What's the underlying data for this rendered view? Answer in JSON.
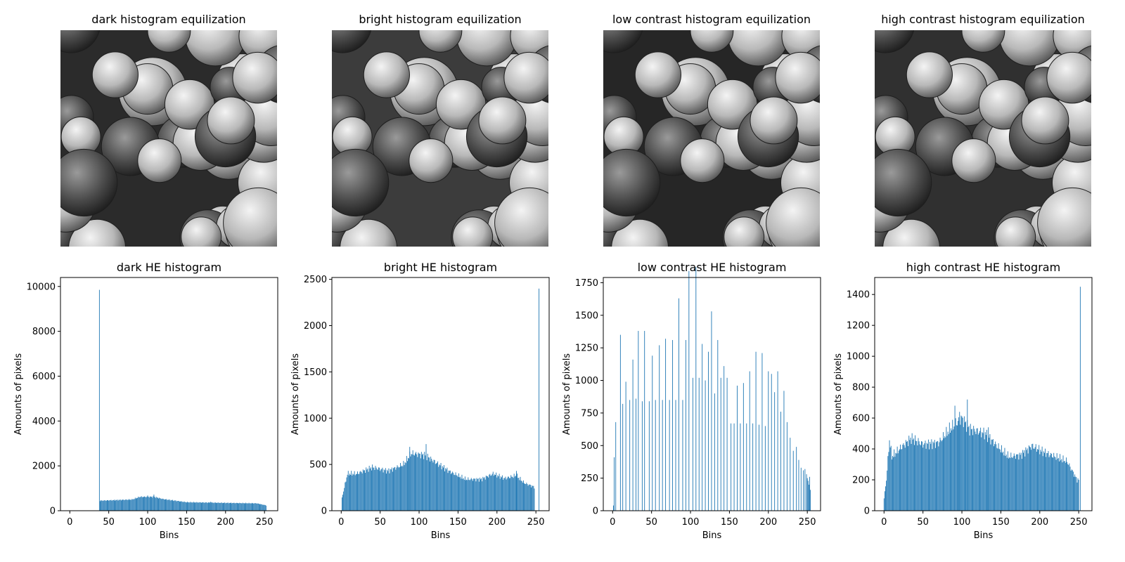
{
  "image_titles": [
    "dark histogram equilization",
    "bright histogram equilization",
    "low contrast histogram equilization",
    "high contrast histogram equilization"
  ],
  "colors": {
    "bar": "#1f77b4",
    "axis": "#000000"
  },
  "chart_data": [
    {
      "type": "bar",
      "title": "dark HE histogram",
      "xlabel": "Bins",
      "ylabel": "Amounts of pixels",
      "xlim": [
        -12,
        267
      ],
      "ylim": [
        0,
        10400
      ],
      "xticks": [
        0,
        50,
        100,
        150,
        200,
        250
      ],
      "yticks": [
        0,
        2000,
        4000,
        6000,
        8000,
        10000
      ],
      "spikes": [
        [
          38,
          9850
        ],
        [
          100,
          680
        ],
        [
          108,
          720
        ],
        [
          181,
          400
        ]
      ],
      "profile": [
        [
          39,
          450
        ],
        [
          80,
          500
        ],
        [
          90,
          620
        ],
        [
          108,
          620
        ],
        [
          120,
          520
        ],
        [
          150,
          380
        ],
        [
          200,
          350
        ],
        [
          240,
          330
        ],
        [
          252,
          240
        ]
      ],
      "stride": 1,
      "variation": 0.06,
      "comb": false
    },
    {
      "type": "bar",
      "title": "bright HE histogram",
      "xlabel": "Bins",
      "ylabel": "Amounts of pixels",
      "xlim": [
        -12,
        267
      ],
      "ylim": [
        0,
        2520
      ],
      "xticks": [
        0,
        50,
        100,
        150,
        200,
        250
      ],
      "yticks": [
        0,
        500,
        1000,
        1500,
        2000,
        2500
      ],
      "spikes": [
        [
          254,
          2400
        ],
        [
          109,
          720
        ],
        [
          88,
          690
        ],
        [
          225,
          430
        ]
      ],
      "profile": [
        [
          0,
          100
        ],
        [
          4,
          250
        ],
        [
          8,
          400
        ],
        [
          20,
          400
        ],
        [
          40,
          470
        ],
        [
          60,
          430
        ],
        [
          80,
          500
        ],
        [
          90,
          620
        ],
        [
          108,
          600
        ],
        [
          120,
          530
        ],
        [
          140,
          420
        ],
        [
          160,
          340
        ],
        [
          180,
          340
        ],
        [
          195,
          400
        ],
        [
          210,
          350
        ],
        [
          225,
          380
        ],
        [
          235,
          300
        ],
        [
          247,
          260
        ]
      ],
      "stride": 1,
      "variation": 0.08,
      "comb": false,
      "range": [
        1,
        248
      ]
    },
    {
      "type": "bar",
      "title": "low contrast HE histogram",
      "xlabel": "Bins",
      "ylabel": "Amounts of pixels",
      "xlim": [
        -12,
        267
      ],
      "ylim": [
        0,
        1790
      ],
      "xticks": [
        0,
        50,
        100,
        150,
        200,
        250
      ],
      "yticks": [
        0,
        250,
        500,
        750,
        1000,
        1250,
        1500,
        1750
      ],
      "tall_bars": [
        [
          1,
          40
        ],
        [
          2,
          410
        ],
        [
          4,
          680
        ],
        [
          10,
          1350
        ],
        [
          13,
          820
        ],
        [
          17,
          990
        ],
        [
          22,
          850
        ],
        [
          26,
          1160
        ],
        [
          30,
          860
        ],
        [
          33,
          1380
        ],
        [
          38,
          840
        ],
        [
          41,
          1380
        ],
        [
          47,
          840
        ],
        [
          51,
          1190
        ],
        [
          55,
          850
        ],
        [
          60,
          1270
        ],
        [
          64,
          850
        ],
        [
          68,
          1320
        ],
        [
          73,
          850
        ],
        [
          77,
          1310
        ],
        [
          81,
          850
        ],
        [
          85,
          1630
        ],
        [
          90,
          850
        ],
        [
          94,
          1310
        ],
        [
          98,
          1840
        ],
        [
          103,
          1020
        ],
        [
          107,
          1870
        ],
        [
          111,
          1020
        ],
        [
          115,
          1280
        ],
        [
          119,
          1000
        ],
        [
          123,
          1220
        ],
        [
          127,
          1530
        ],
        [
          131,
          900
        ],
        [
          135,
          1310
        ],
        [
          139,
          1020
        ],
        [
          143,
          1110
        ],
        [
          147,
          1020
        ],
        [
          152,
          670
        ],
        [
          156,
          670
        ],
        [
          160,
          960
        ],
        [
          164,
          670
        ],
        [
          168,
          980
        ],
        [
          172,
          670
        ],
        [
          176,
          1070
        ],
        [
          180,
          670
        ],
        [
          184,
          1220
        ],
        [
          188,
          660
        ],
        [
          192,
          1210
        ],
        [
          196,
          650
        ],
        [
          200,
          1070
        ],
        [
          204,
          1050
        ],
        [
          208,
          910
        ],
        [
          212,
          1070
        ],
        [
          216,
          760
        ],
        [
          220,
          920
        ],
        [
          224,
          680
        ],
        [
          228,
          560
        ],
        [
          232,
          460
        ],
        [
          236,
          490
        ],
        [
          239,
          390
        ],
        [
          242,
          330
        ],
        [
          245,
          310
        ],
        [
          247,
          320
        ],
        [
          249,
          280
        ],
        [
          250,
          250
        ],
        [
          251,
          230
        ],
        [
          252,
          200
        ],
        [
          253,
          260
        ],
        [
          254,
          160
        ]
      ],
      "comb": true
    },
    {
      "type": "bar",
      "title": "high contrast HE histogram",
      "xlabel": "Bins",
      "ylabel": "Amounts of pixels",
      "xlim": [
        -12,
        267
      ],
      "ylim": [
        0,
        1510
      ],
      "xticks": [
        0,
        50,
        100,
        150,
        200,
        250
      ],
      "yticks": [
        0,
        200,
        400,
        600,
        800,
        1000,
        1200,
        1400
      ],
      "spikes": [
        [
          252,
          1450
        ],
        [
          107,
          720
        ],
        [
          91,
          680
        ],
        [
          97,
          640
        ],
        [
          134,
          540
        ]
      ],
      "profile": [
        [
          0,
          80
        ],
        [
          3,
          200
        ],
        [
          7,
          460
        ],
        [
          10,
          350
        ],
        [
          20,
          400
        ],
        [
          35,
          470
        ],
        [
          50,
          430
        ],
        [
          70,
          440
        ],
        [
          85,
          530
        ],
        [
          100,
          600
        ],
        [
          110,
          530
        ],
        [
          130,
          500
        ],
        [
          145,
          420
        ],
        [
          160,
          350
        ],
        [
          175,
          360
        ],
        [
          190,
          420
        ],
        [
          205,
          380
        ],
        [
          220,
          350
        ],
        [
          235,
          320
        ],
        [
          248,
          200
        ]
      ],
      "stride": 1,
      "variation": 0.09,
      "comb": false,
      "range": [
        0,
        250
      ]
    }
  ]
}
